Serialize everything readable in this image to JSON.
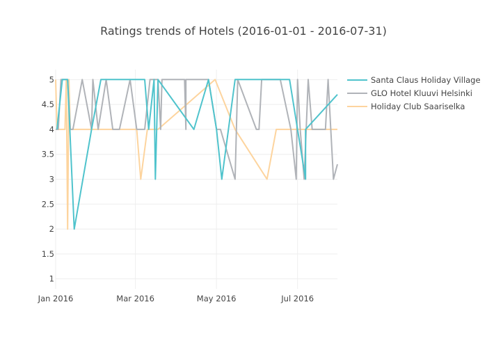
{
  "chart_data": {
    "type": "line",
    "title": "Ratings trends of Hotels (2016-01-01 - 2016-07-31)",
    "xlabel": "",
    "ylabel": "",
    "xlim": [
      "2016-01-01",
      "2016-07-31"
    ],
    "ylim": [
      0.8,
      5.2
    ],
    "x_ticks": [
      {
        "date": "2016-01-01",
        "label": "Jan 2016"
      },
      {
        "date": "2016-03-01",
        "label": "Mar 2016"
      },
      {
        "date": "2016-05-01",
        "label": "May 2016"
      },
      {
        "date": "2016-07-01",
        "label": "Jul 2016"
      }
    ],
    "y_ticks": [
      1,
      1.5,
      2,
      2.5,
      3,
      3.5,
      4,
      4.5,
      5
    ],
    "y_tick_labels": [
      "1",
      "1.5",
      "2",
      "2.5",
      "3",
      "3.5",
      "4",
      "4.5",
      "5"
    ],
    "grid": true,
    "legend_position": "top-right",
    "series": [
      {
        "name": "Santa Claus Holiday Village",
        "color": "#4fc3cc",
        "points": [
          [
            "2016-01-02",
            4
          ],
          [
            "2016-01-06",
            5
          ],
          [
            "2016-01-10",
            5
          ],
          [
            "2016-01-15",
            2
          ],
          [
            "2016-01-28",
            4
          ],
          [
            "2016-02-04",
            5
          ],
          [
            "2016-02-20",
            5
          ],
          [
            "2016-03-08",
            5
          ],
          [
            "2016-03-11",
            4
          ],
          [
            "2016-03-15",
            5
          ],
          [
            "2016-03-16",
            3
          ],
          [
            "2016-03-18",
            5
          ],
          [
            "2016-04-14",
            4
          ],
          [
            "2016-04-25",
            5
          ],
          [
            "2016-05-01",
            4
          ],
          [
            "2016-05-05",
            3
          ],
          [
            "2016-05-15",
            5
          ],
          [
            "2016-06-13",
            5
          ],
          [
            "2016-06-25",
            5
          ],
          [
            "2016-07-07",
            3
          ],
          [
            "2016-07-07",
            4
          ],
          [
            "2016-07-31",
            4.7
          ]
        ]
      },
      {
        "name": "GLO Hotel Kluuvi Helsinki",
        "color": "#b0b3b8",
        "points": [
          [
            "2016-01-01",
            4
          ],
          [
            "2016-01-03",
            4
          ],
          [
            "2016-01-05",
            5
          ],
          [
            "2016-01-10",
            5
          ],
          [
            "2016-01-12",
            4
          ],
          [
            "2016-01-14",
            4
          ],
          [
            "2016-01-21",
            5
          ],
          [
            "2016-01-28",
            4
          ],
          [
            "2016-01-29",
            5
          ],
          [
            "2016-02-02",
            4
          ],
          [
            "2016-02-08",
            5
          ],
          [
            "2016-02-13",
            4
          ],
          [
            "2016-02-18",
            4
          ],
          [
            "2016-02-26",
            5
          ],
          [
            "2016-03-02",
            4
          ],
          [
            "2016-03-08",
            4
          ],
          [
            "2016-03-12",
            5
          ],
          [
            "2016-03-18",
            5
          ],
          [
            "2016-03-20",
            4
          ],
          [
            "2016-03-21",
            5
          ],
          [
            "2016-03-27",
            5
          ],
          [
            "2016-04-07",
            5
          ],
          [
            "2016-04-08",
            4
          ],
          [
            "2016-04-08",
            5
          ],
          [
            "2016-04-25",
            5
          ],
          [
            "2016-05-01",
            4
          ],
          [
            "2016-05-04",
            4
          ],
          [
            "2016-05-15",
            3
          ],
          [
            "2016-05-17",
            5
          ],
          [
            "2016-05-31",
            4
          ],
          [
            "2016-06-02",
            4
          ],
          [
            "2016-06-04",
            5
          ],
          [
            "2016-06-18",
            5
          ],
          [
            "2016-06-26",
            4
          ],
          [
            "2016-06-30",
            3
          ],
          [
            "2016-07-01",
            5
          ],
          [
            "2016-07-03",
            4
          ],
          [
            "2016-07-06",
            3
          ],
          [
            "2016-07-09",
            5
          ],
          [
            "2016-07-12",
            4
          ],
          [
            "2016-07-22",
            4
          ],
          [
            "2016-07-24",
            5
          ],
          [
            "2016-07-28",
            3
          ],
          [
            "2016-07-31",
            3.3
          ]
        ]
      },
      {
        "name": "Holiday Club Saariselka",
        "color": "#fdd49e",
        "points": [
          [
            "2016-01-01",
            5
          ],
          [
            "2016-01-02",
            4
          ],
          [
            "2016-01-05",
            4
          ],
          [
            "2016-01-08",
            4
          ],
          [
            "2016-01-09",
            5
          ],
          [
            "2016-01-10",
            2
          ],
          [
            "2016-01-11",
            5
          ],
          [
            "2016-01-12",
            4
          ],
          [
            "2016-02-20",
            4
          ],
          [
            "2016-03-02",
            4
          ],
          [
            "2016-03-05",
            3
          ],
          [
            "2016-03-10",
            4
          ],
          [
            "2016-03-16",
            4
          ],
          [
            "2016-03-18",
            4
          ],
          [
            "2016-04-30",
            5
          ],
          [
            "2016-05-15",
            4
          ],
          [
            "2016-06-08",
            3
          ],
          [
            "2016-06-15",
            4
          ],
          [
            "2016-07-15",
            4
          ],
          [
            "2016-07-31",
            4
          ]
        ]
      }
    ]
  }
}
